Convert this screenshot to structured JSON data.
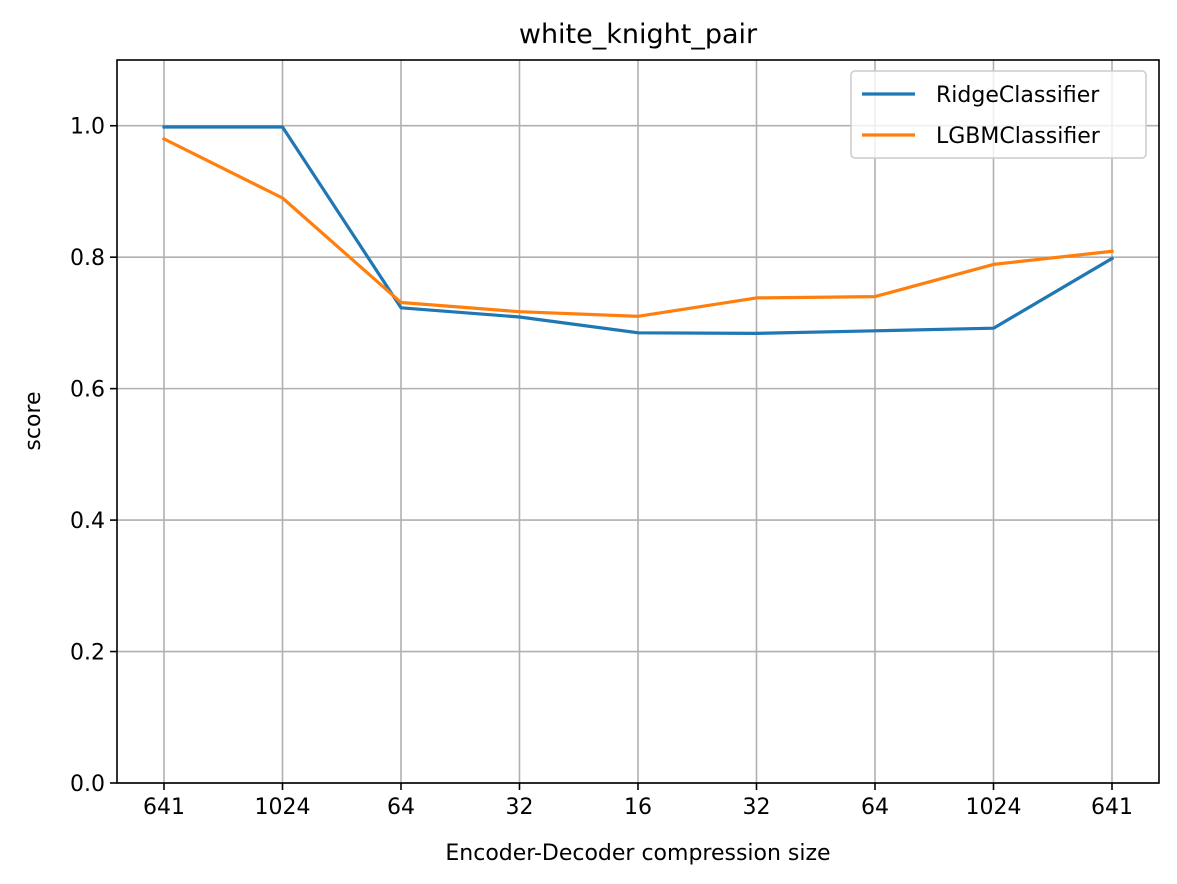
{
  "chart_data": {
    "type": "line",
    "title": "white_knight_pair",
    "xlabel": "Encoder-Decoder compression size",
    "ylabel": "score",
    "categories": [
      "641",
      "1024",
      "64",
      "32",
      "16",
      "32",
      "64",
      "1024",
      "641"
    ],
    "ylim": [
      0,
      1.1
    ],
    "yticks": [
      "0.0",
      "0.2",
      "0.4",
      "0.6",
      "0.8",
      "1.0"
    ],
    "ytick_values": [
      0,
      0.2,
      0.4,
      0.6,
      0.8,
      1.0
    ],
    "grid": true,
    "legend_position": "top-right",
    "series": [
      {
        "name": "RidgeClassifier",
        "color": "#1f77b4",
        "values": [
          0.998,
          0.998,
          0.723,
          0.709,
          0.685,
          0.684,
          0.688,
          0.692,
          0.798
        ]
      },
      {
        "name": "LGBMClassifier",
        "color": "#ff7f0e",
        "values": [
          0.98,
          0.89,
          0.731,
          0.717,
          0.71,
          0.738,
          0.74,
          0.789,
          0.809
        ]
      }
    ]
  }
}
